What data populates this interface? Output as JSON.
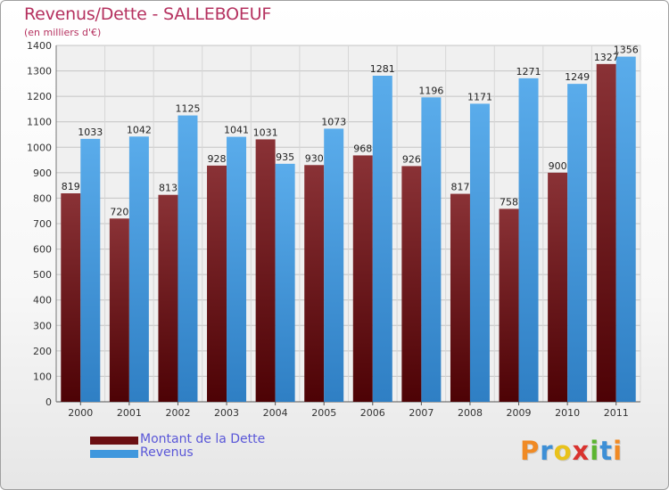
{
  "title": "Revenus/Dette - SALLEBOEUF",
  "subtitle": "(en milliers d'€)",
  "logo": {
    "text": "Proxiti",
    "colors": [
      "#f08a24",
      "#3d8fd6",
      "#e9c21b",
      "#d9332f",
      "#5cb531",
      "#3d8fd6",
      "#f08a24"
    ]
  },
  "legend": [
    {
      "label": "Montant de la Dette",
      "color": "#6b0f12"
    },
    {
      "label": "Revenus",
      "color": "#3f97dd"
    }
  ],
  "chart_data": {
    "type": "bar",
    "title": "Revenus/Dette - SALLEBOEUF",
    "ylabel": "(en milliers d'€)",
    "xlabel": "",
    "ylim": [
      0,
      1400
    ],
    "ytick_step": 100,
    "grid": true,
    "legend_position": "bottom-left",
    "categories": [
      "2000",
      "2001",
      "2002",
      "2003",
      "2004",
      "2005",
      "2006",
      "2007",
      "2008",
      "2009",
      "2010",
      "2011"
    ],
    "series": [
      {
        "name": "Montant de la Dette",
        "values": [
          819,
          720,
          813,
          928,
          1031,
          930,
          968,
          926,
          817,
          758,
          900,
          1327
        ]
      },
      {
        "name": "Revenus",
        "values": [
          1033,
          1042,
          1125,
          1041,
          935,
          1073,
          1281,
          1196,
          1171,
          1271,
          1249,
          1356
        ]
      }
    ]
  }
}
